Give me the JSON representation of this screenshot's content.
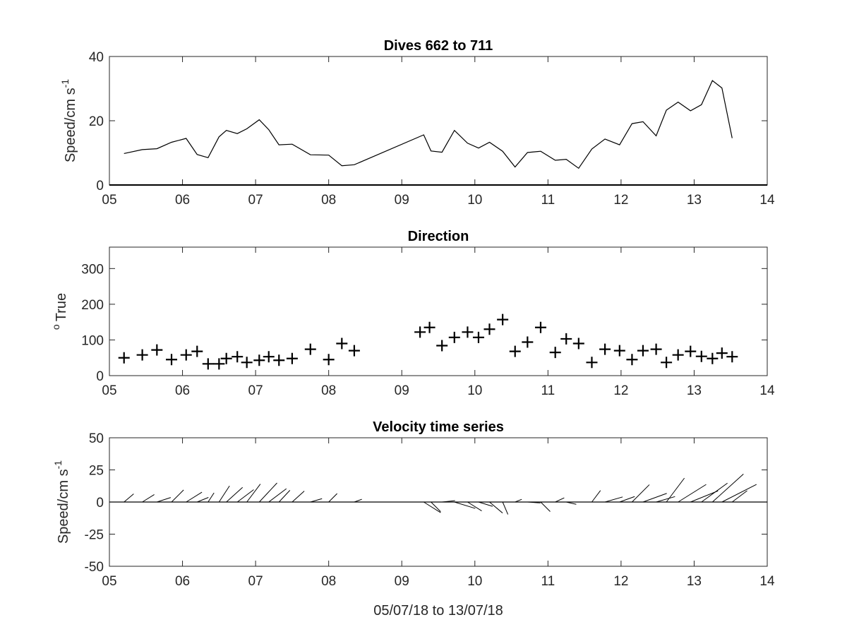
{
  "chart_data": [
    {
      "type": "line",
      "title": "Dives 662 to 711",
      "xlabel": "",
      "ylabel": "Speed/cm s",
      "ylabel_superscript": "-1",
      "xlim": [
        5,
        14
      ],
      "ylim": [
        0,
        40
      ],
      "xticks": [
        "05",
        "06",
        "07",
        "08",
        "09",
        "10",
        "11",
        "12",
        "13",
        "14"
      ],
      "yticks": [
        "0",
        "20",
        "40"
      ],
      "grid": false,
      "series": [
        {
          "x": [
            5.2,
            5.45,
            5.65,
            5.85,
            6.05,
            6.2,
            6.35,
            6.5,
            6.6,
            6.75,
            6.88,
            7.05,
            7.18,
            7.32,
            7.5,
            7.75,
            8.0,
            8.18,
            8.35,
            9.3,
            9.4,
            9.55,
            9.72,
            9.9,
            10.05,
            10.2,
            10.38,
            10.55,
            10.72,
            10.9,
            11.1,
            11.25,
            11.42,
            11.6,
            11.78,
            11.98,
            12.15,
            12.3,
            12.48,
            12.62,
            12.78,
            12.95,
            13.1,
            13.25,
            13.38,
            13.52
          ],
          "values": [
            9.8,
            11,
            11.3,
            13.3,
            14.5,
            9.5,
            8.5,
            15,
            17,
            16,
            17.5,
            20.3,
            17.2,
            12.5,
            12.7,
            9.4,
            9.3,
            6,
            6.3,
            15.6,
            10.6,
            10.2,
            17,
            13,
            11.5,
            13.3,
            10.5,
            5.6,
            10.1,
            10.5,
            7.7,
            8,
            5.2,
            11.2,
            14.3,
            12.5,
            19.1,
            19.7,
            15.3,
            23.3,
            25.8,
            23.1,
            25,
            32.5,
            30.2,
            14.6
          ]
        }
      ]
    },
    {
      "type": "scatter",
      "title": "Direction",
      "xlabel": "",
      "ylabel": "True",
      "ylabel_prefix": "o",
      "xlim": [
        5,
        14
      ],
      "ylim": [
        0,
        360
      ],
      "xticks": [
        "05",
        "06",
        "07",
        "08",
        "09",
        "10",
        "11",
        "12",
        "13",
        "14"
      ],
      "yticks": [
        "0",
        "100",
        "200",
        "300"
      ],
      "marker": "+",
      "grid": false,
      "series": [
        {
          "x": [
            5.2,
            5.45,
            5.65,
            5.85,
            6.05,
            6.2,
            6.35,
            6.5,
            6.6,
            6.75,
            6.88,
            7.05,
            7.18,
            7.32,
            7.5,
            7.75,
            8.0,
            8.18,
            8.35,
            9.25,
            9.38,
            9.55,
            9.72,
            9.9,
            10.05,
            10.2,
            10.38,
            10.55,
            10.72,
            10.9,
            11.1,
            11.25,
            11.42,
            11.6,
            11.78,
            11.98,
            12.15,
            12.3,
            12.48,
            12.62,
            12.78,
            12.95,
            13.1,
            13.25,
            13.38,
            13.52
          ],
          "values": [
            50,
            58,
            72,
            45,
            58,
            68,
            33,
            33,
            48,
            53,
            37,
            43,
            53,
            43,
            48,
            74,
            45,
            90,
            70,
            122,
            135,
            84,
            107,
            122,
            107,
            130,
            157,
            68,
            94,
            135,
            65,
            103,
            90,
            37,
            74,
            70,
            45,
            70,
            74,
            37,
            58,
            68,
            54,
            48,
            63,
            53
          ]
        }
      ]
    },
    {
      "type": "line",
      "subtype": "stick",
      "title": "Velocity time series",
      "xlabel": "05/07/18 to 13/07/18",
      "ylabel": "Speed/cm s",
      "ylabel_superscript": "-1",
      "xlim": [
        5,
        14
      ],
      "ylim": [
        -50,
        50
      ],
      "xticks": [
        "05",
        "06",
        "07",
        "08",
        "09",
        "10",
        "11",
        "12",
        "13",
        "14"
      ],
      "yticks": [
        "-50",
        "-25",
        "0",
        "25",
        "50"
      ],
      "grid": false,
      "series": [
        {
          "x": [
            5.2,
            5.45,
            5.65,
            5.85,
            6.05,
            6.2,
            6.35,
            6.5,
            6.6,
            6.75,
            6.88,
            7.05,
            7.18,
            7.32,
            7.5,
            7.75,
            8.0,
            8.18,
            8.35,
            9.3,
            9.4,
            9.55,
            9.72,
            9.9,
            10.05,
            10.2,
            10.38,
            10.55,
            10.72,
            10.9,
            11.1,
            11.25,
            11.42,
            11.6,
            11.78,
            11.98,
            12.15,
            12.3,
            12.48,
            12.62,
            12.78,
            12.95,
            13.1,
            13.25,
            13.38,
            13.52
          ],
          "speed": [
            9.8,
            11,
            11.3,
            13.3,
            14.5,
            9.5,
            8.5,
            15,
            17,
            16,
            17.5,
            20.3,
            17.2,
            12.5,
            12.7,
            9.4,
            9.3,
            6,
            6.3,
            15.6,
            10.6,
            10.2,
            17,
            13,
            11.5,
            13.3,
            10.5,
            5.6,
            10.1,
            10.5,
            7.7,
            8,
            5.2,
            11.2,
            14.3,
            12.5,
            19.1,
            19.7,
            15.3,
            23.3,
            25.8,
            23.1,
            25,
            32.5,
            30.2,
            14.6
          ],
          "direction": [
            50,
            58,
            72,
            45,
            58,
            68,
            33,
            33,
            48,
            53,
            37,
            43,
            53,
            43,
            48,
            74,
            45,
            90,
            70,
            122,
            135,
            84,
            107,
            122,
            107,
            130,
            157,
            68,
            94,
            135,
            65,
            103,
            90,
            37,
            74,
            70,
            45,
            70,
            74,
            37,
            58,
            68,
            54,
            48,
            63,
            53
          ]
        }
      ]
    }
  ]
}
